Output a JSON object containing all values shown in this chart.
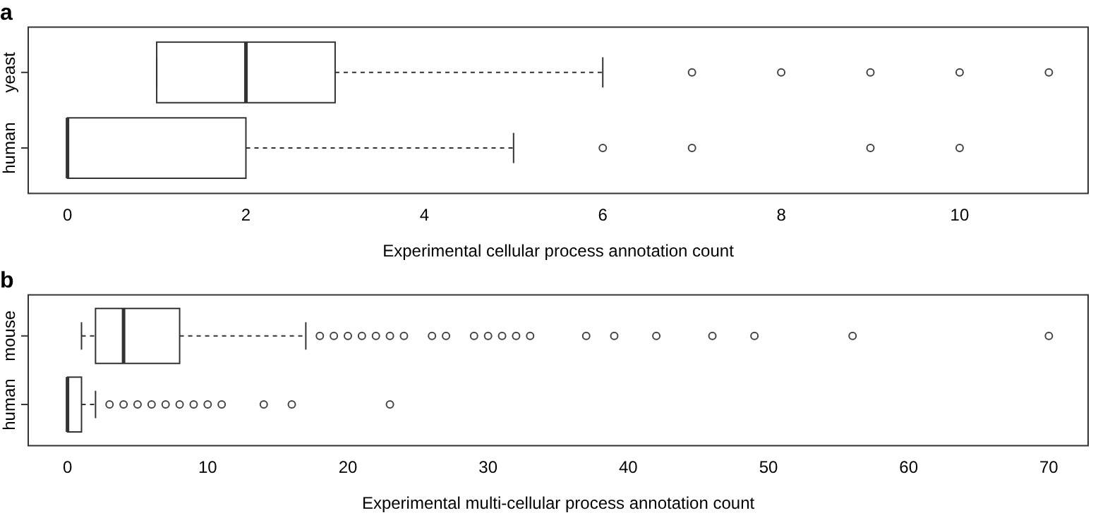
{
  "chart_data": [
    {
      "type": "box",
      "title": "a",
      "xlabel": "Experimental cellular process annotation count",
      "orientation": "horizontal",
      "categories": [
        "yeast",
        "human"
      ],
      "xlim": [
        -0.44,
        11.44
      ],
      "xticks": [
        0,
        2,
        4,
        6,
        8,
        10
      ],
      "boxes": [
        {
          "low": 1,
          "q1": 1,
          "median": 2,
          "q3": 3,
          "high": 6,
          "outliers": [
            7,
            8,
            9,
            10,
            11
          ]
        },
        {
          "low": 0,
          "q1": 0,
          "median": 0,
          "q3": 2,
          "high": 5,
          "outliers": [
            6,
            7,
            9,
            10
          ]
        }
      ],
      "marker": "circle"
    },
    {
      "type": "box",
      "title": "b",
      "xlabel": "Experimental multi-cellular process annotation count",
      "orientation": "horizontal",
      "categories": [
        "mouse",
        "human"
      ],
      "xlim": [
        -2.8,
        72.8
      ],
      "xticks": [
        0,
        10,
        20,
        30,
        40,
        50,
        60,
        70
      ],
      "boxes": [
        {
          "low": 1,
          "q1": 2,
          "median": 4,
          "q3": 8,
          "high": 17,
          "outliers": [
            18,
            19,
            20,
            21,
            22,
            23,
            24,
            26,
            27,
            29,
            30,
            31,
            32,
            33,
            37,
            39,
            42,
            46,
            49,
            56,
            70
          ]
        },
        {
          "low": 0,
          "q1": 0,
          "median": 0,
          "q3": 1,
          "high": 2,
          "outliers": [
            3,
            4,
            5,
            6,
            7,
            8,
            9,
            10,
            11,
            14,
            16,
            23
          ]
        }
      ],
      "marker": "circle"
    }
  ]
}
